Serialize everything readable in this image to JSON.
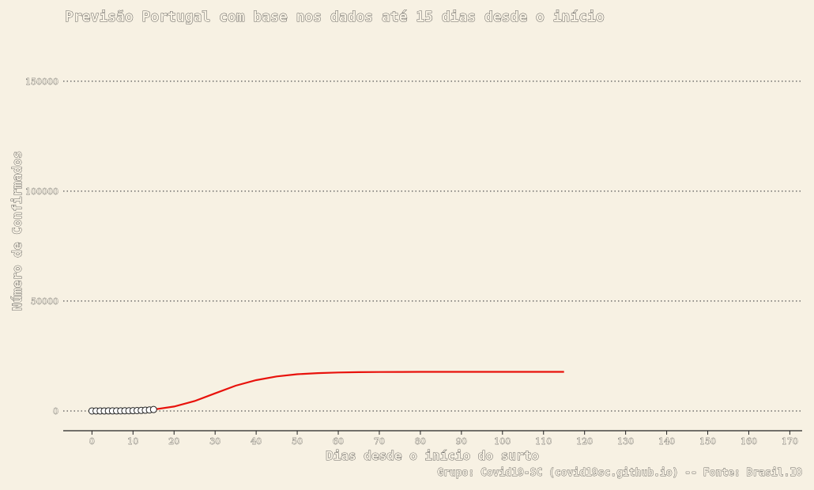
{
  "chart_data": {
    "type": "line",
    "title": "Previsão Portugal com base nos dados até 15 dias desde o início",
    "xlabel": "Dias desde o início do surto",
    "ylabel": "Número de Confirmados",
    "caption": "Grupo: Covid19-SC (covid19sc.github.io) -- Fonte: Brasil.IO",
    "xlim": [
      -7,
      173
    ],
    "ylim": [
      -9000,
      151000
    ],
    "x_ticks": [
      0,
      10,
      20,
      30,
      40,
      50,
      60,
      70,
      80,
      90,
      100,
      110,
      120,
      130,
      140,
      150,
      160,
      170
    ],
    "y_ticks": [
      0,
      50000,
      100000,
      150000
    ],
    "y_tick_labels": [
      "0",
      "50000",
      "100000",
      "150000"
    ],
    "grid": "horizontal-dotted",
    "series": [
      {
        "name": "",
        "kind": "points",
        "x": [
          0,
          1,
          2,
          3,
          4,
          5,
          6,
          7,
          8,
          9,
          10,
          11,
          12,
          13,
          14,
          15
        ],
        "y": [
          2,
          4,
          6,
          9,
          13,
          21,
          30,
          41,
          59,
          78,
          112,
          169,
          245,
          331,
          448,
          642
        ]
      },
      {
        "name": "",
        "kind": "line",
        "color": "#e8120c",
        "x": [
          15,
          20,
          25,
          30,
          35,
          40,
          45,
          50,
          55,
          60,
          65,
          70,
          75,
          80,
          85,
          90,
          95,
          100,
          105,
          110,
          115
        ],
        "y": [
          650,
          2000,
          4500,
          8000,
          11500,
          14000,
          15700,
          16700,
          17200,
          17500,
          17650,
          17720,
          17760,
          17780,
          17790,
          17795,
          17798,
          17800,
          17800,
          17800,
          17800
        ]
      }
    ]
  }
}
